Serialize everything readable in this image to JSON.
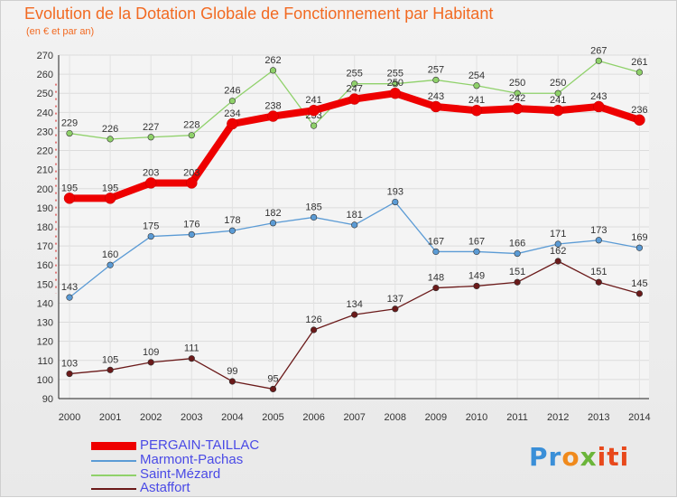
{
  "chart_data": {
    "type": "line",
    "title": "Evolution de la Dotation Globale de Fonctionnement par Habitant",
    "subtitle": "(en € et par an)",
    "xlabel": "",
    "ylabel": "",
    "ylim": [
      90,
      270
    ],
    "y_ticks": [
      90,
      100,
      110,
      120,
      130,
      140,
      150,
      160,
      170,
      180,
      190,
      200,
      210,
      220,
      230,
      240,
      250,
      260,
      270
    ],
    "grid": true,
    "legend_position": "bottom-left",
    "categories": [
      "2000",
      "2001",
      "2002",
      "2003",
      "2004",
      "2005",
      "2006",
      "2007",
      "2008",
      "2009",
      "2010",
      "2011",
      "2012",
      "2013",
      "2014"
    ],
    "series": [
      {
        "name": "Saint-Mézard",
        "color": "#8fd16a",
        "values": [
          229,
          226,
          227,
          228,
          246,
          262,
          233,
          255,
          255,
          257,
          254,
          250,
          250,
          267,
          261
        ]
      },
      {
        "name": "Marmont-Pachas",
        "color": "#5b9bd5",
        "values": [
          143,
          160,
          175,
          176,
          178,
          182,
          185,
          181,
          193,
          167,
          167,
          166,
          171,
          173,
          169
        ]
      },
      {
        "name": "Astaffort",
        "color": "#6b1a1a",
        "values": [
          103,
          105,
          109,
          111,
          99,
          95,
          126,
          134,
          137,
          148,
          149,
          151,
          162,
          151,
          145
        ]
      },
      {
        "name": "PERGAIN-TAILLAC",
        "color": "#ee0000",
        "values": [
          195,
          195,
          203,
          203,
          234,
          238,
          241,
          247,
          250,
          243,
          241,
          242,
          241,
          243,
          236
        ]
      }
    ]
  },
  "legend": [
    {
      "label": "PERGAIN-TAILLAC",
      "color": "#ee0000"
    },
    {
      "label": "Marmont-Pachas",
      "color": "#5b9bd5"
    },
    {
      "label": "Saint-Mézard",
      "color": "#8fd16a"
    },
    {
      "label": "Astaffort",
      "color": "#6b1a1a"
    }
  ],
  "logo": {
    "p1": "Pr",
    "p2": "o",
    "p3": "x",
    "p4": "iti"
  }
}
